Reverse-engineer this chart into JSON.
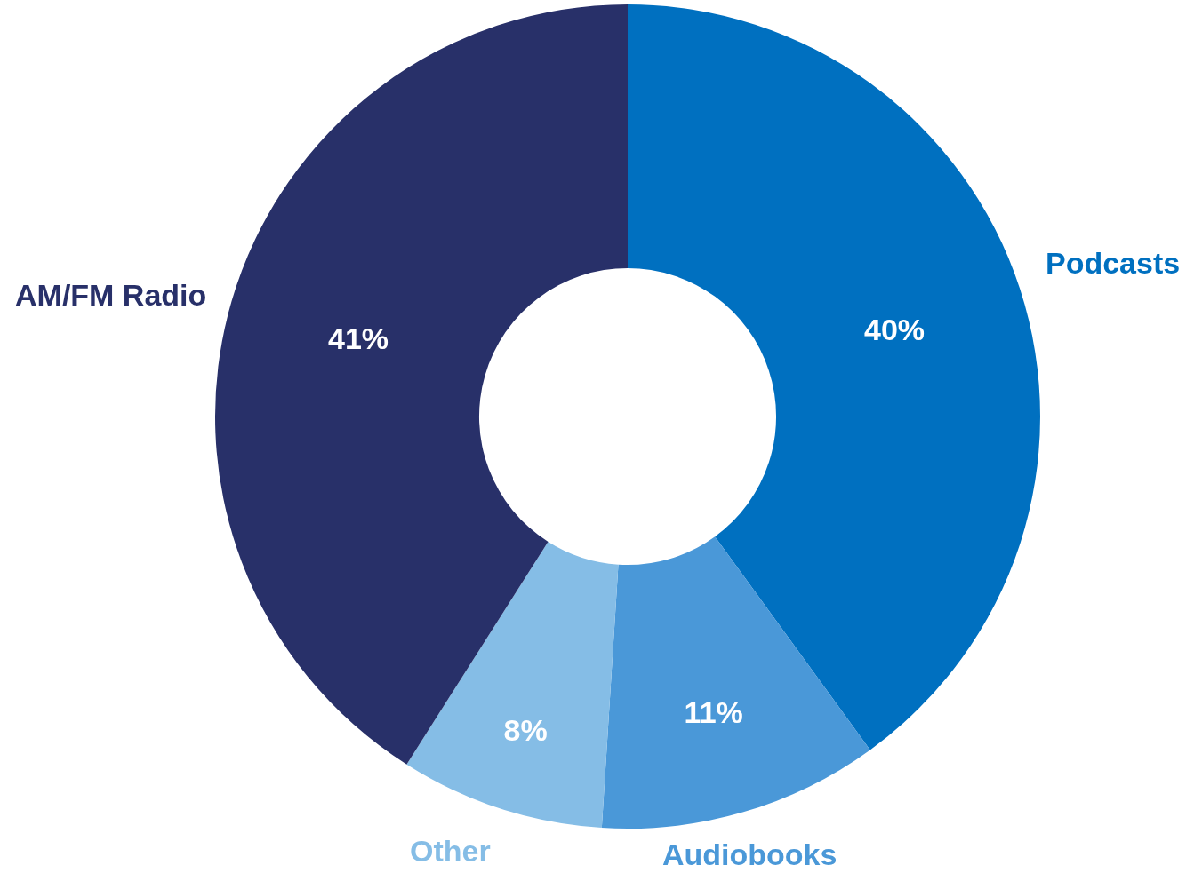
{
  "chart_data": {
    "type": "donut",
    "categories": [
      "Podcasts",
      "Audiobooks",
      "Other",
      "AM/FM Radio"
    ],
    "values": [
      40,
      11,
      8,
      41
    ],
    "colors": [
      "#0070c0",
      "#4a98d8",
      "#85bde6",
      "#283069"
    ],
    "value_labels": [
      "40%",
      "11%",
      "8%",
      "41%"
    ],
    "legend": false
  }
}
